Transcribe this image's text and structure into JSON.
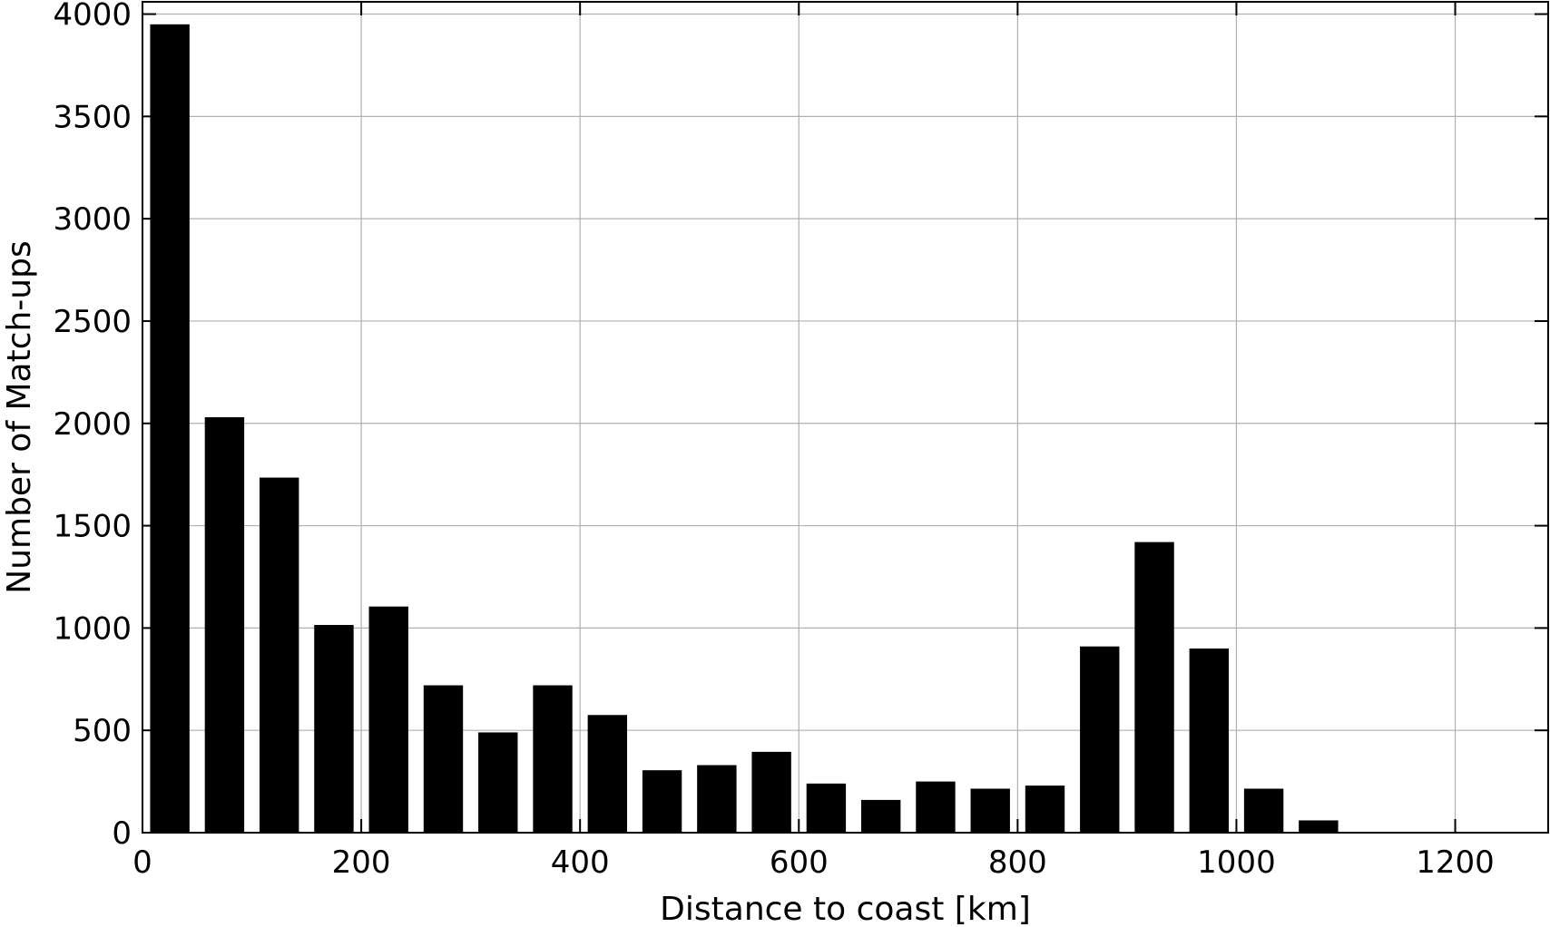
{
  "chart_data": {
    "type": "bar",
    "title": "",
    "xlabel": "Distance to coast [km]",
    "ylabel": "Number of Match-ups",
    "xlim": [
      0,
      1285
    ],
    "ylim": [
      0,
      4060
    ],
    "xticks": [
      0,
      200,
      400,
      600,
      800,
      1000,
      1200
    ],
    "yticks": [
      0,
      500,
      1000,
      1500,
      2000,
      2500,
      3000,
      3500,
      4000
    ],
    "xtick_labels": [
      "0",
      "200",
      "400",
      "600",
      "800",
      "1000",
      "1200"
    ],
    "ytick_labels": [
      "0",
      "500",
      "1000",
      "1500",
      "2000",
      "2500",
      "3000",
      "3500",
      "4000"
    ],
    "grid": true,
    "bar_color": "#000000",
    "bin_width": 50,
    "bar_width_km": 36,
    "x": [
      25,
      75,
      125,
      175,
      225,
      275,
      325,
      375,
      425,
      475,
      525,
      575,
      625,
      675,
      725,
      775,
      825,
      875,
      925,
      975,
      1025,
      1075
    ],
    "values": [
      3950,
      2030,
      1735,
      1015,
      1105,
      720,
      490,
      720,
      575,
      305,
      330,
      395,
      240,
      160,
      250,
      215,
      230,
      910,
      1420,
      900,
      215,
      60
    ]
  }
}
